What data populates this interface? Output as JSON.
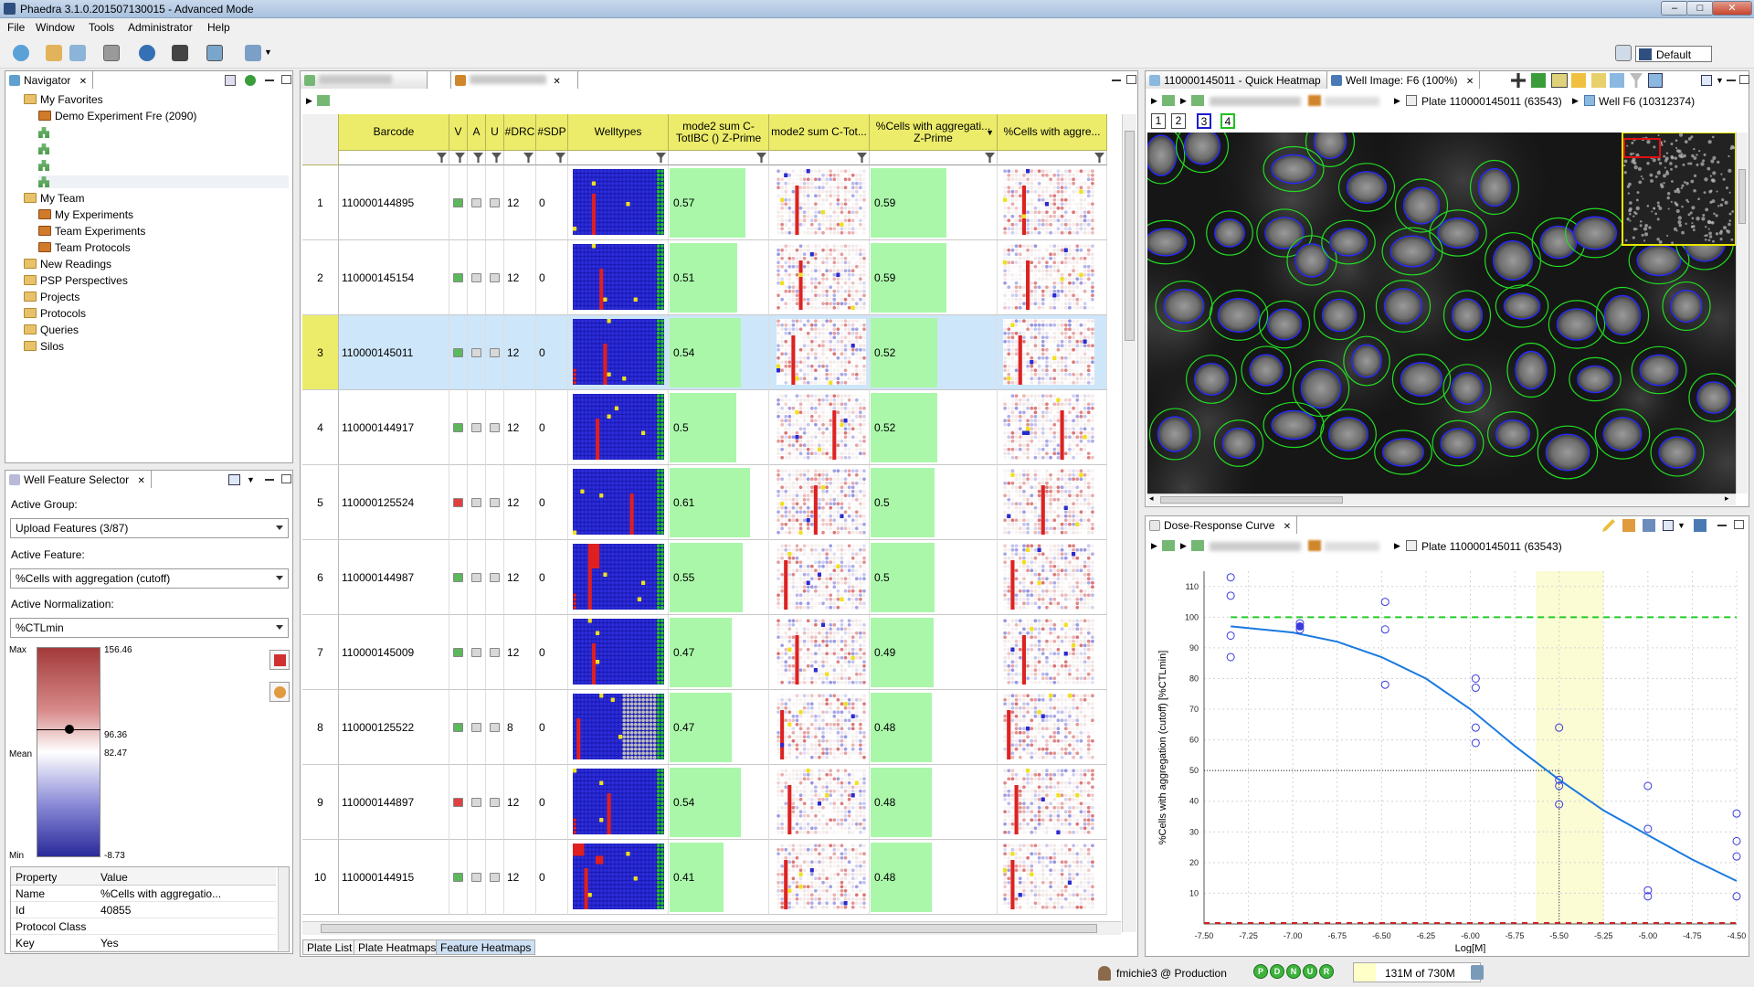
{
  "window": {
    "title": "Phaedra 3.1.0.201507130015 - Advanced Mode"
  },
  "menu": [
    "File",
    "Window",
    "Tools",
    "Administrator",
    "Help"
  ],
  "perspective": {
    "label": "Default"
  },
  "navigator": {
    "tab": "Navigator",
    "items": [
      {
        "label": "My Favorites",
        "indent": 0,
        "kind": "folder"
      },
      {
        "label": "Demo Experiment Fre (2090)",
        "indent": 1,
        "kind": "experiment"
      },
      {
        "label": "",
        "indent": 1,
        "kind": "hier"
      },
      {
        "label": "",
        "indent": 1,
        "kind": "hier"
      },
      {
        "label": "",
        "indent": 1,
        "kind": "hier"
      },
      {
        "label": "",
        "indent": 1,
        "kind": "hier"
      },
      {
        "label": "My Team",
        "indent": 0,
        "kind": "folder"
      },
      {
        "label": "My Experiments",
        "indent": 1,
        "kind": "experiment"
      },
      {
        "label": "Team Experiments",
        "indent": 1,
        "kind": "experiment"
      },
      {
        "label": "Team Protocols",
        "indent": 1,
        "kind": "experiment"
      },
      {
        "label": "New Readings",
        "indent": 0,
        "kind": "folder"
      },
      {
        "label": "PSP Perspectives",
        "indent": 0,
        "kind": "folder"
      },
      {
        "label": "Projects",
        "indent": 0,
        "kind": "folder"
      },
      {
        "label": "Protocols",
        "indent": 0,
        "kind": "folder"
      },
      {
        "label": "Queries",
        "indent": 0,
        "kind": "folder"
      },
      {
        "label": "Silos",
        "indent": 0,
        "kind": "folder"
      }
    ]
  },
  "feature_selector": {
    "tab": "Well Feature Selector",
    "active_group_label": "Active Group:",
    "active_group": "Upload Features (3/87)",
    "active_feature_label": "Active Feature:",
    "active_feature": "%Cells with aggregation (cutoff)",
    "active_norm_label": "Active Normalization:",
    "active_norm": "%CTLmin",
    "legend": {
      "max_label": "Max",
      "mean_label": "Mean",
      "min_label": "Min",
      "max": "156.46",
      "upper": "96.36",
      "mean": "82.47",
      "min": "-8.73"
    }
  },
  "properties": {
    "headers": [
      "Property",
      "Value"
    ],
    "rows": [
      {
        "property": "Name",
        "value": "%Cells with aggregatio..."
      },
      {
        "property": "Id",
        "value": "40855"
      },
      {
        "property": "Protocol Class",
        "value": ""
      },
      {
        "property": "Key",
        "value": "Yes"
      }
    ]
  },
  "plate_table": {
    "columns": [
      "Barcode",
      "V",
      "A",
      "U",
      "#DRC",
      "#SDP",
      "Welltypes",
      "mode2 sum C-TotIBC () Z-Prime",
      "mode2 sum C-Tot...",
      "%Cells with aggregati... Z-Prime",
      "%Cells with aggre..."
    ],
    "rows": [
      {
        "n": "1",
        "barcode": "110000144895",
        "drc": "12",
        "sdp": "0",
        "z1": "0.57",
        "z1f": 0.57,
        "z2": "0.59",
        "z2f": 0.59,
        "vflag": "green"
      },
      {
        "n": "2",
        "barcode": "110000145154",
        "drc": "12",
        "sdp": "0",
        "z1": "0.51",
        "z1f": 0.51,
        "z2": "0.59",
        "z2f": 0.59,
        "vflag": "green"
      },
      {
        "n": "3",
        "barcode": "110000145011",
        "drc": "12",
        "sdp": "0",
        "z1": "0.54",
        "z1f": 0.54,
        "z2": "0.52",
        "z2f": 0.52,
        "vflag": "green",
        "selected": true
      },
      {
        "n": "4",
        "barcode": "110000144917",
        "drc": "12",
        "sdp": "0",
        "z1": "0.5",
        "z1f": 0.5,
        "z2": "0.52",
        "z2f": 0.52,
        "vflag": "green"
      },
      {
        "n": "5",
        "barcode": "110000125524",
        "drc": "12",
        "sdp": "0",
        "z1": "0.61",
        "z1f": 0.61,
        "z2": "0.5",
        "z2f": 0.5,
        "vflag": "red"
      },
      {
        "n": "6",
        "barcode": "110000144987",
        "drc": "12",
        "sdp": "0",
        "z1": "0.55",
        "z1f": 0.55,
        "z2": "0.5",
        "z2f": 0.5,
        "vflag": "green"
      },
      {
        "n": "7",
        "barcode": "110000145009",
        "drc": "12",
        "sdp": "0",
        "z1": "0.47",
        "z1f": 0.47,
        "z2": "0.49",
        "z2f": 0.49,
        "vflag": "green"
      },
      {
        "n": "8",
        "barcode": "110000125522",
        "drc": "8",
        "sdp": "0",
        "z1": "0.47",
        "z1f": 0.47,
        "z2": "0.48",
        "z2f": 0.48,
        "vflag": "green"
      },
      {
        "n": "9",
        "barcode": "110000144897",
        "drc": "12",
        "sdp": "0",
        "z1": "0.54",
        "z1f": 0.54,
        "z2": "0.48",
        "z2f": 0.48,
        "vflag": "red"
      },
      {
        "n": "10",
        "barcode": "110000144915",
        "drc": "12",
        "sdp": "0",
        "z1": "0.41",
        "z1f": 0.41,
        "z2": "0.48",
        "z2f": 0.48,
        "vflag": "green"
      }
    ],
    "bottom_tabs": [
      "Plate List",
      "Plate Heatmaps",
      "Feature Heatmaps"
    ]
  },
  "image_view": {
    "tabs": [
      "110000145011 - Quick Heatmap",
      "Well Image: F6 (100%)"
    ],
    "plate": "Plate 110000145011 (63543)",
    "well": "Well F6 (10312374)",
    "channels": [
      "1",
      "2",
      "3",
      "4"
    ]
  },
  "dose_response": {
    "tab": "Dose-Response Curve",
    "plate": "Plate 110000145011 (63543)"
  },
  "chart_data": {
    "type": "scatter",
    "xlabel": "Log[M]",
    "ylabel": "%Cells with aggregation (cutoff) [%CTLmin]",
    "xlim": [
      -7.5,
      -4.5
    ],
    "ylim": [
      0,
      115
    ],
    "x_ticks": [
      "-7.50",
      "-7.25",
      "-7.00",
      "-6.75",
      "-6.50",
      "-6.25",
      "-6.00",
      "-5.75",
      "-5.50",
      "-5.25",
      "-5.00",
      "-4.75",
      "-4.50"
    ],
    "y_ticks": [
      "10",
      "20",
      "30",
      "40",
      "50",
      "60",
      "70",
      "80",
      "90",
      "100",
      "110"
    ],
    "grid": true,
    "upper_line": 100,
    "half_line": 50,
    "ec50_band": [
      -5.63,
      -5.25
    ],
    "ec50": -5.5,
    "points": [
      {
        "x": -7.35,
        "y": 113
      },
      {
        "x": -7.35,
        "y": 107
      },
      {
        "x": -7.35,
        "y": 94
      },
      {
        "x": -7.35,
        "y": 87
      },
      {
        "x": -6.96,
        "y": 98
      },
      {
        "x": -6.96,
        "y": 97
      },
      {
        "x": -6.96,
        "y": 96
      },
      {
        "x": -6.48,
        "y": 105
      },
      {
        "x": -6.48,
        "y": 96
      },
      {
        "x": -6.48,
        "y": 78
      },
      {
        "x": -5.97,
        "y": 80
      },
      {
        "x": -5.97,
        "y": 77
      },
      {
        "x": -5.97,
        "y": 64
      },
      {
        "x": -5.97,
        "y": 59
      },
      {
        "x": -5.5,
        "y": 64
      },
      {
        "x": -5.5,
        "y": 47
      },
      {
        "x": -5.5,
        "y": 45
      },
      {
        "x": -5.5,
        "y": 39
      },
      {
        "x": -5.0,
        "y": 45
      },
      {
        "x": -5.0,
        "y": 31
      },
      {
        "x": -5.0,
        "y": 11
      },
      {
        "x": -5.0,
        "y": 9
      },
      {
        "x": -4.5,
        "y": 36
      },
      {
        "x": -4.5,
        "y": 27
      },
      {
        "x": -4.5,
        "y": 22
      },
      {
        "x": -4.5,
        "y": 9
      }
    ],
    "curve": [
      {
        "x": -7.35,
        "y": 97
      },
      {
        "x": -7.0,
        "y": 95
      },
      {
        "x": -6.75,
        "y": 92
      },
      {
        "x": -6.5,
        "y": 87
      },
      {
        "x": -6.25,
        "y": 80
      },
      {
        "x": -6.0,
        "y": 70
      },
      {
        "x": -5.75,
        "y": 58
      },
      {
        "x": -5.5,
        "y": 47
      },
      {
        "x": -5.25,
        "y": 37
      },
      {
        "x": -5.0,
        "y": 29
      },
      {
        "x": -4.75,
        "y": 21
      },
      {
        "x": -4.5,
        "y": 14
      }
    ]
  },
  "status": {
    "user": "fmichie3 @ Production",
    "lights": [
      "P",
      "D",
      "N",
      "U",
      "R"
    ],
    "memory": "131M of 730M"
  }
}
